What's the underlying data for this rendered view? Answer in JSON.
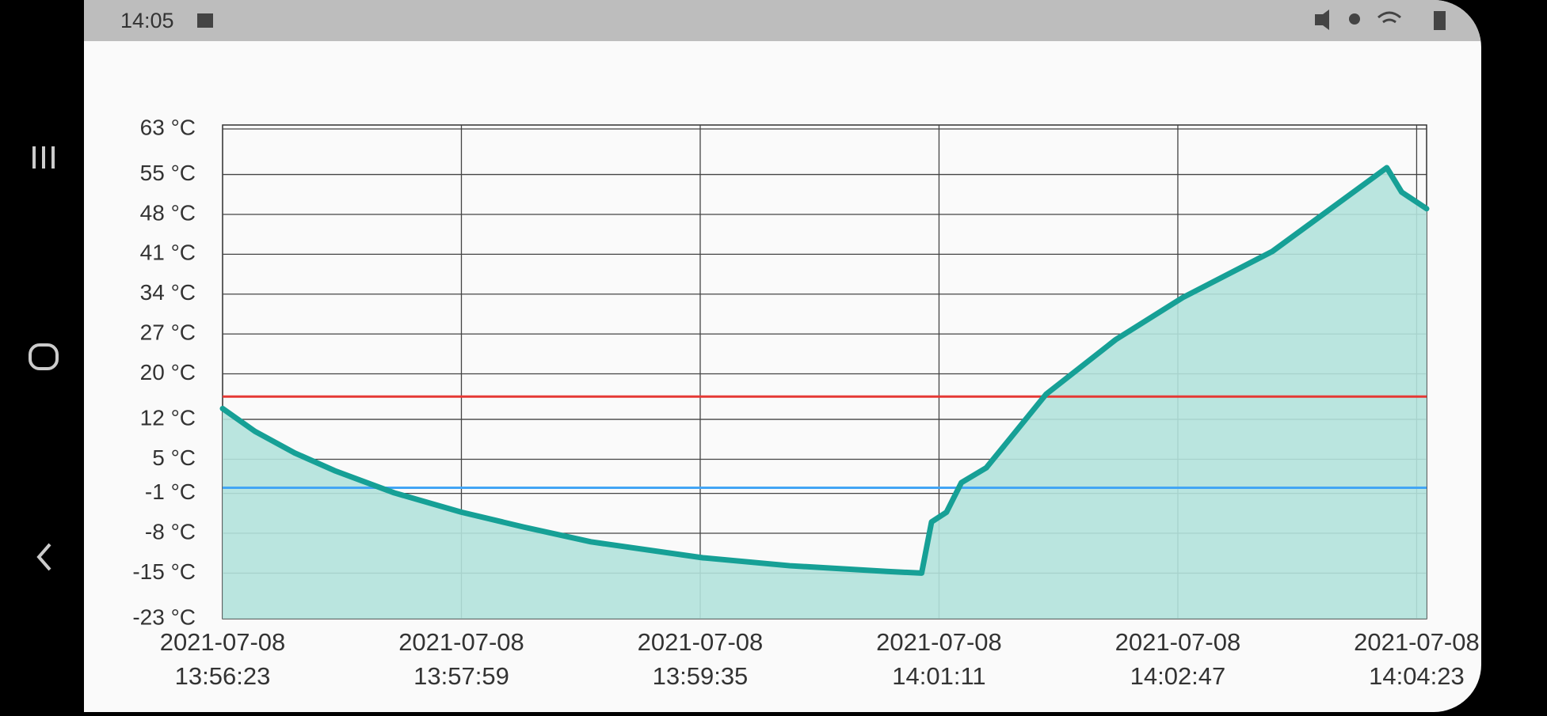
{
  "status_bar": {
    "time": "14:05"
  },
  "chart_data": {
    "type": "area",
    "x": [
      "2021-07-08 13:56:23",
      "2021-07-08 13:56:36",
      "2021-07-08 13:56:52",
      "2021-07-08 13:57:08",
      "2021-07-08 13:57:32",
      "2021-07-08 13:57:59",
      "2021-07-08 13:58:24",
      "2021-07-08 13:58:51",
      "2021-07-08 13:59:36",
      "2021-07-08 14:00:11",
      "2021-07-08 14:00:50",
      "2021-07-08 14:01:04",
      "2021-07-08 14:01:08",
      "2021-07-08 14:01:14",
      "2021-07-08 14:01:20",
      "2021-07-08 14:01:30",
      "2021-07-08 14:01:54",
      "2021-07-08 14:02:22",
      "2021-07-08 14:02:49",
      "2021-07-08 14:03:25",
      "2021-07-08 14:04:11",
      "2021-07-08 14:04:17",
      "2021-07-08 14:04:27"
    ],
    "values": [
      13.9,
      9.9,
      6.1,
      3.0,
      -0.9,
      -4.3,
      -6.9,
      -9.5,
      -12.3,
      -13.7,
      -14.7,
      -15.0,
      -6.0,
      -4.3,
      0.9,
      3.5,
      16.4,
      26,
      33.4,
      41.5,
      56.2,
      51.9,
      49
    ],
    "color": "#16a096",
    "fill_color": "#b2e2dc",
    "xlim": [
      "2021-07-08 13:56:23",
      "2021-07-08 14:04:27"
    ],
    "xticks": [
      "2021-07-08 13:56:23",
      "2021-07-08 13:57:59",
      "2021-07-08 13:59:35",
      "2021-07-08 14:01:11",
      "2021-07-08 14:02:47",
      "2021-07-08 14:04:23"
    ],
    "ylim": [
      -23,
      63
    ],
    "yticks": [
      {
        "value": -23,
        "label": "-23 °C"
      },
      {
        "value": -15,
        "label": "-15 °C"
      },
      {
        "value": -8,
        "label": "-8 °C"
      },
      {
        "value": -1,
        "label": "-1 °C"
      },
      {
        "value": 5,
        "label": "5 °C"
      },
      {
        "value": 12,
        "label": "12 °C"
      },
      {
        "value": 20,
        "label": "20 °C"
      },
      {
        "value": 27,
        "label": "27 °C"
      },
      {
        "value": 34,
        "label": "34 °C"
      },
      {
        "value": 41,
        "label": "41 °C"
      },
      {
        "value": 48,
        "label": "48 °C"
      },
      {
        "value": 55,
        "label": "55 °C"
      },
      {
        "value": 63,
        "label": "63 °C"
      }
    ],
    "thresholds": [
      {
        "value": 16,
        "color": "#e53935"
      },
      {
        "value": 0,
        "color": "#42a5f5"
      }
    ],
    "grid": true
  }
}
